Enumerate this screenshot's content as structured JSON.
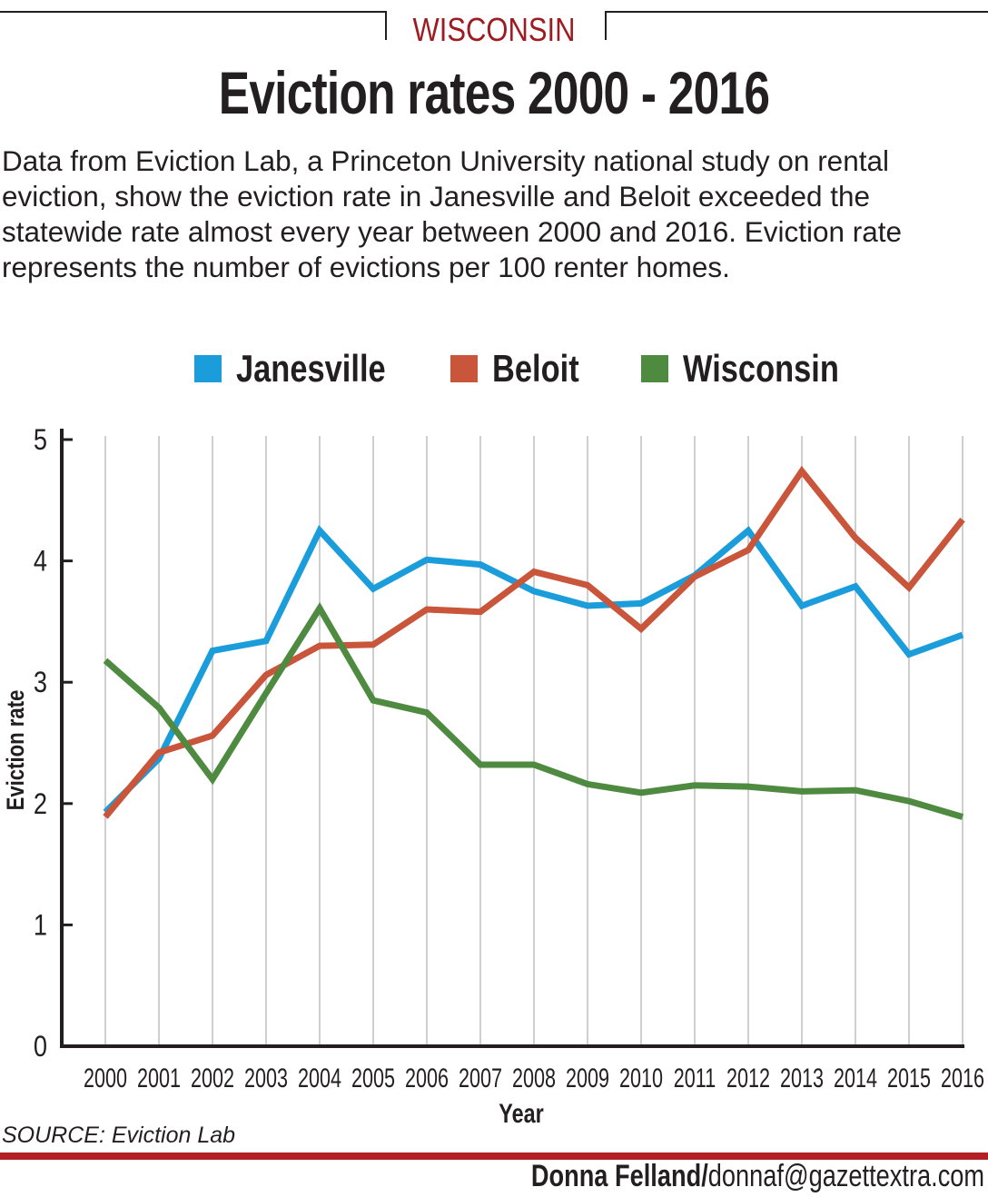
{
  "header": {
    "kicker": "WISCONSIN",
    "title": "Eviction rates 2000 - 2016",
    "intro": "Data from Eviction Lab, a Princeton University national study on rental eviction, show the eviction rate in Janesville and Beloit exceeded the statewide rate almost every year between 2000 and 2016. Eviction rate represents the number of evictions per 100 renter homes."
  },
  "colors": {
    "kicker": "#9e1b22",
    "rule": "#b21f24",
    "janesville": "#1b9ddb",
    "beloit": "#c9553b",
    "wisconsin": "#4f8a41",
    "grid": "#cfcfcf",
    "text": "#231f20"
  },
  "chart_data": {
    "type": "line",
    "xlabel": "Year",
    "ylabel": "Eviction rate",
    "ylim": [
      0,
      5
    ],
    "yticks": [
      "0",
      "1",
      "2",
      "3",
      "4",
      "5"
    ],
    "x": [
      "2000",
      "2001",
      "2002",
      "2003",
      "2004",
      "2005",
      "2006",
      "2007",
      "2008",
      "2009",
      "2010",
      "2011",
      "2012",
      "2013",
      "2014",
      "2015",
      "2016"
    ],
    "grid": "vertical",
    "legend_position": "top",
    "series": [
      {
        "name": "Janesville",
        "color": "#1b9ddb",
        "values": [
          1.93,
          2.37,
          3.26,
          3.34,
          4.25,
          3.77,
          4.01,
          3.97,
          3.75,
          3.63,
          3.65,
          3.88,
          4.25,
          3.63,
          3.79,
          3.23,
          3.39
        ]
      },
      {
        "name": "Beloit",
        "color": "#c9553b",
        "values": [
          1.89,
          2.42,
          2.56,
          3.06,
          3.3,
          3.31,
          3.6,
          3.58,
          3.91,
          3.8,
          3.44,
          3.87,
          4.09,
          4.74,
          4.19,
          3.78,
          4.34
        ]
      },
      {
        "name": "Wisconsin",
        "color": "#4f8a41",
        "values": [
          3.18,
          2.79,
          2.2,
          2.91,
          3.61,
          2.85,
          2.75,
          2.32,
          2.32,
          2.16,
          2.09,
          2.15,
          2.14,
          2.1,
          2.11,
          2.02,
          1.89
        ]
      }
    ]
  },
  "footer": {
    "source": "SOURCE: Eviction Lab",
    "credit_name": "Donna Felland/",
    "credit_email": "donnaf@gazettextra.com"
  }
}
